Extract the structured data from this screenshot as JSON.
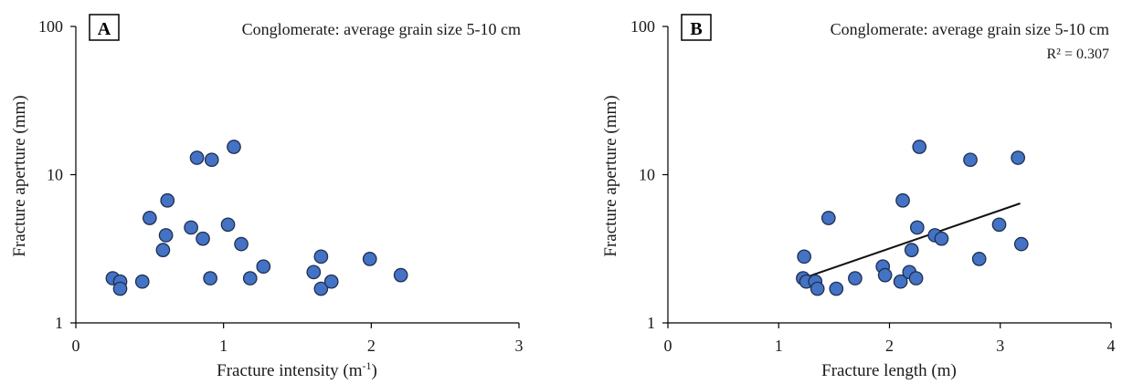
{
  "chart_data": [
    {
      "type": "scatter",
      "panel_label": "A",
      "annotation": "Conglomerate: average grain size 5-10 cm",
      "xlabel": "Fracture intensity (m",
      "xlabel_sup": "-1",
      "xlabel_end": ")",
      "ylabel": "Fracture aperture (mm)",
      "xlim": [
        0,
        3
      ],
      "ylim": [
        1,
        100
      ],
      "yscale": "log",
      "x_ticks": [
        "0",
        "1",
        "2",
        "3"
      ],
      "y_ticks": [
        "1",
        "10",
        "100"
      ],
      "grid": false,
      "marker_color": "#4472c4",
      "points": [
        {
          "x": 0.25,
          "y": 2.0
        },
        {
          "x": 0.3,
          "y": 1.9
        },
        {
          "x": 0.3,
          "y": 1.7
        },
        {
          "x": 0.45,
          "y": 1.9
        },
        {
          "x": 0.5,
          "y": 5.1
        },
        {
          "x": 0.59,
          "y": 3.1
        },
        {
          "x": 0.61,
          "y": 3.9
        },
        {
          "x": 0.62,
          "y": 6.7
        },
        {
          "x": 0.78,
          "y": 4.4
        },
        {
          "x": 0.82,
          "y": 13.0
        },
        {
          "x": 0.86,
          "y": 3.7
        },
        {
          "x": 0.91,
          "y": 2.0
        },
        {
          "x": 0.92,
          "y": 12.6
        },
        {
          "x": 1.03,
          "y": 4.6
        },
        {
          "x": 1.07,
          "y": 15.4
        },
        {
          "x": 1.12,
          "y": 3.4
        },
        {
          "x": 1.18,
          "y": 2.0
        },
        {
          "x": 1.27,
          "y": 2.4
        },
        {
          "x": 1.61,
          "y": 2.2
        },
        {
          "x": 1.66,
          "y": 1.7
        },
        {
          "x": 1.66,
          "y": 2.8
        },
        {
          "x": 1.73,
          "y": 1.9
        },
        {
          "x": 1.99,
          "y": 2.7
        },
        {
          "x": 2.2,
          "y": 2.1
        }
      ]
    },
    {
      "type": "scatter",
      "panel_label": "B",
      "annotation": "Conglomerate: average grain size 5-10 cm",
      "r_squared": "R² = 0.307",
      "xlabel": "Fracture length (m)",
      "ylabel": "Fracture aperture (mm)",
      "xlim": [
        0,
        4
      ],
      "ylim": [
        1,
        100
      ],
      "yscale": "log",
      "x_ticks": [
        "0",
        "1",
        "2",
        "3",
        "4"
      ],
      "y_ticks": [
        "1",
        "10",
        "100"
      ],
      "grid": false,
      "marker_color": "#4472c4",
      "trendline": {
        "x": [
          1.22,
          3.18
        ],
        "y": [
          2.0,
          6.4
        ]
      },
      "points": [
        {
          "x": 1.22,
          "y": 2.0
        },
        {
          "x": 1.23,
          "y": 2.8
        },
        {
          "x": 1.25,
          "y": 1.9
        },
        {
          "x": 1.33,
          "y": 1.9
        },
        {
          "x": 1.35,
          "y": 1.7
        },
        {
          "x": 1.45,
          "y": 5.1
        },
        {
          "x": 1.52,
          "y": 1.7
        },
        {
          "x": 1.69,
          "y": 2.0
        },
        {
          "x": 1.94,
          "y": 2.4
        },
        {
          "x": 1.96,
          "y": 2.1
        },
        {
          "x": 2.1,
          "y": 1.9
        },
        {
          "x": 2.12,
          "y": 6.7
        },
        {
          "x": 2.18,
          "y": 2.2
        },
        {
          "x": 2.2,
          "y": 3.1
        },
        {
          "x": 2.24,
          "y": 2.0
        },
        {
          "x": 2.25,
          "y": 4.4
        },
        {
          "x": 2.27,
          "y": 15.4
        },
        {
          "x": 2.41,
          "y": 3.9
        },
        {
          "x": 2.47,
          "y": 3.7
        },
        {
          "x": 2.73,
          "y": 12.6
        },
        {
          "x": 2.81,
          "y": 2.7
        },
        {
          "x": 2.99,
          "y": 4.6
        },
        {
          "x": 3.16,
          "y": 13.0
        },
        {
          "x": 3.19,
          "y": 3.4
        }
      ]
    }
  ]
}
